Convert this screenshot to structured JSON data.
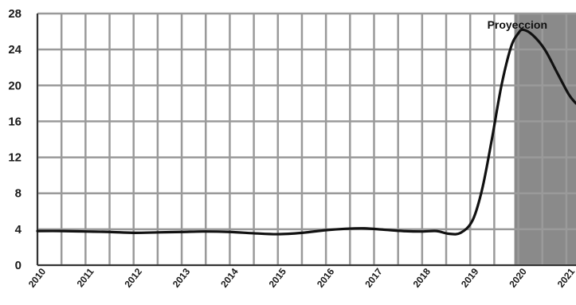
{
  "chart_data": {
    "type": "line",
    "title": "",
    "xlabel": "",
    "ylabel": "",
    "ylim": [
      0,
      28
    ],
    "xlim": [
      2010,
      2021.2
    ],
    "y_ticks": [
      "0",
      "4",
      "8",
      "12",
      "16",
      "20",
      "24",
      "28"
    ],
    "x_ticks": [
      "2010",
      "2011",
      "2012",
      "2013",
      "2014",
      "2015",
      "2016",
      "2017",
      "2018",
      "2019",
      "2020",
      "2021"
    ],
    "grid": true,
    "legend": "none",
    "series": [
      {
        "name": "",
        "points": [
          [
            2010.0,
            3.8
          ],
          [
            2010.5,
            3.8
          ],
          [
            2011.0,
            3.75
          ],
          [
            2011.5,
            3.7
          ],
          [
            2012.0,
            3.6
          ],
          [
            2012.5,
            3.65
          ],
          [
            2013.0,
            3.7
          ],
          [
            2013.5,
            3.75
          ],
          [
            2014.0,
            3.7
          ],
          [
            2014.5,
            3.55
          ],
          [
            2015.0,
            3.45
          ],
          [
            2015.5,
            3.6
          ],
          [
            2016.0,
            3.9
          ],
          [
            2016.4,
            4.05
          ],
          [
            2016.8,
            4.1
          ],
          [
            2017.2,
            3.95
          ],
          [
            2017.6,
            3.8
          ],
          [
            2018.0,
            3.75
          ],
          [
            2018.3,
            3.8
          ],
          [
            2018.55,
            3.5
          ],
          [
            2018.8,
            3.6
          ],
          [
            2019.05,
            5.0
          ],
          [
            2019.25,
            8.5
          ],
          [
            2019.45,
            14.0
          ],
          [
            2019.65,
            20.0
          ],
          [
            2019.85,
            24.3
          ],
          [
            2020.0,
            25.8
          ],
          [
            2020.1,
            26.2
          ],
          [
            2020.3,
            25.6
          ],
          [
            2020.55,
            24.0
          ],
          [
            2020.8,
            21.5
          ],
          [
            2021.05,
            19.0
          ],
          [
            2021.2,
            18.0
          ]
        ]
      }
    ],
    "projection": {
      "label": "Proyeccion",
      "start": 2020.0,
      "end": 2021.2,
      "color": "#8a8a8a"
    }
  }
}
